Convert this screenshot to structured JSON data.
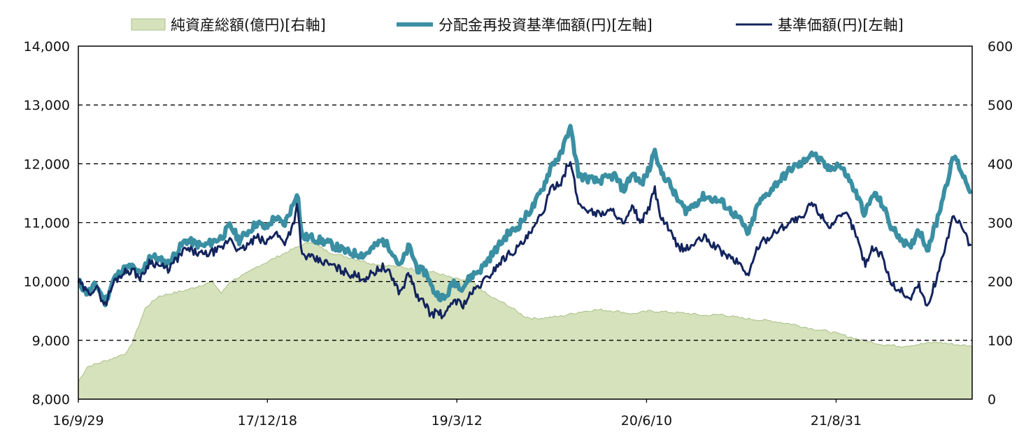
{
  "chart_data": {
    "type": "line",
    "title": "",
    "xlabel": "",
    "ylabel": "",
    "x_ticks": [
      "16/9/29",
      "17/12/18",
      "19/3/12",
      "20/6/10",
      "21/8/31"
    ],
    "left_axis": {
      "min": 8000,
      "max": 14000,
      "ticks": [
        "8,000",
        "9,000",
        "10,000",
        "11,000",
        "12,000",
        "13,000",
        "14,000"
      ]
    },
    "right_axis": {
      "min": 0,
      "max": 600,
      "ticks": [
        "0",
        "100",
        "200",
        "300",
        "400",
        "500",
        "600"
      ]
    },
    "grid": "dashed horizontal at each left-axis tick",
    "legend": [
      {
        "label": "純資産総額(億円)[右軸]",
        "type": "area",
        "color": "#d6e2bc",
        "edge": "#a9bf86"
      },
      {
        "label": "分配金再投資基準価額(円)[左軸]",
        "type": "line",
        "color": "#3a8fa3"
      },
      {
        "label": "基準価額(円)[左軸]",
        "type": "line",
        "color": "#13245e"
      }
    ],
    "series": [
      {
        "name": "純資産総額(億円)[右軸]",
        "axis": "right",
        "t": [
          0,
          0.01,
          0.04,
          0.055,
          0.06,
          0.07,
          0.075,
          0.09,
          0.12,
          0.13,
          0.15,
          0.16,
          0.17,
          0.19,
          0.2,
          0.22,
          0.24,
          0.26,
          0.28,
          0.3,
          0.33,
          0.36,
          0.38,
          0.4,
          0.42,
          0.44,
          0.46,
          0.48,
          0.5,
          0.51,
          0.52,
          0.54,
          0.56,
          0.58,
          0.6,
          0.62,
          0.64,
          0.66,
          0.68,
          0.7,
          0.72,
          0.74,
          0.76,
          0.78,
          0.8,
          0.82,
          0.84,
          0.86,
          0.88,
          0.9,
          0.92,
          0.94,
          0.96,
          0.98,
          1.0
        ],
        "values": [
          30,
          55,
          70,
          80,
          95,
          135,
          155,
          175,
          185,
          190,
          200,
          180,
          200,
          215,
          225,
          240,
          255,
          268,
          250,
          242,
          230,
          225,
          220,
          215,
          205,
          200,
          175,
          160,
          140,
          137,
          138,
          141,
          148,
          152,
          150,
          145,
          150,
          148,
          146,
          142,
          144,
          138,
          135,
          132,
          127,
          120,
          115,
          107,
          99,
          93,
          90,
          93,
          97,
          93,
          90
        ]
      },
      {
        "name": "分配金再投資基準価額(円)[左軸]",
        "axis": "left",
        "t": [
          0,
          0.01,
          0.02,
          0.03,
          0.04,
          0.05,
          0.06,
          0.07,
          0.08,
          0.1,
          0.12,
          0.14,
          0.16,
          0.17,
          0.18,
          0.2,
          0.21,
          0.22,
          0.23,
          0.24,
          0.245,
          0.25,
          0.26,
          0.28,
          0.3,
          0.32,
          0.34,
          0.35,
          0.36,
          0.37,
          0.38,
          0.39,
          0.395,
          0.4,
          0.41,
          0.42,
          0.43,
          0.44,
          0.45,
          0.46,
          0.47,
          0.48,
          0.49,
          0.5,
          0.51,
          0.52,
          0.53,
          0.54,
          0.55,
          0.56,
          0.58,
          0.6,
          0.61,
          0.62,
          0.63,
          0.64,
          0.645,
          0.65,
          0.66,
          0.67,
          0.68,
          0.7,
          0.72,
          0.74,
          0.75,
          0.76,
          0.78,
          0.8,
          0.81,
          0.82,
          0.84,
          0.85,
          0.86,
          0.87,
          0.88,
          0.89,
          0.9,
          0.91,
          0.92,
          0.93,
          0.94,
          0.95,
          0.96,
          0.97,
          0.98,
          0.99,
          1.0
        ],
        "values": [
          10000,
          9800,
          9950,
          9650,
          10050,
          10200,
          10250,
          10100,
          10450,
          10300,
          10700,
          10600,
          10750,
          10950,
          10700,
          11000,
          10900,
          11100,
          10950,
          11300,
          11550,
          10750,
          10750,
          10650,
          10500,
          10450,
          10700,
          10550,
          10250,
          10600,
          10200,
          10150,
          9900,
          9800,
          9700,
          10000,
          9900,
          10100,
          10200,
          10400,
          10600,
          10800,
          10900,
          11100,
          11300,
          11600,
          12000,
          12150,
          12650,
          11800,
          11700,
          11800,
          11550,
          11850,
          11650,
          11950,
          12300,
          11900,
          11700,
          11400,
          11200,
          11450,
          11350,
          11050,
          10800,
          11300,
          11650,
          11950,
          12000,
          12200,
          11900,
          12000,
          11800,
          11500,
          11150,
          11500,
          11300,
          10900,
          10750,
          10550,
          10900,
          10550,
          11000,
          11600,
          12150,
          11800,
          11500
        ]
      },
      {
        "name": "基準価額(円)[左軸]",
        "axis": "left",
        "t": [
          0,
          0.01,
          0.02,
          0.03,
          0.04,
          0.05,
          0.06,
          0.07,
          0.08,
          0.1,
          0.12,
          0.14,
          0.16,
          0.17,
          0.18,
          0.2,
          0.21,
          0.22,
          0.23,
          0.24,
          0.245,
          0.25,
          0.26,
          0.28,
          0.3,
          0.32,
          0.34,
          0.35,
          0.36,
          0.37,
          0.38,
          0.39,
          0.395,
          0.4,
          0.41,
          0.42,
          0.43,
          0.44,
          0.45,
          0.46,
          0.47,
          0.48,
          0.49,
          0.5,
          0.51,
          0.52,
          0.53,
          0.54,
          0.55,
          0.56,
          0.58,
          0.6,
          0.61,
          0.62,
          0.63,
          0.64,
          0.645,
          0.65,
          0.66,
          0.67,
          0.68,
          0.7,
          0.72,
          0.74,
          0.75,
          0.76,
          0.78,
          0.8,
          0.81,
          0.82,
          0.84,
          0.85,
          0.86,
          0.87,
          0.88,
          0.89,
          0.9,
          0.91,
          0.92,
          0.93,
          0.94,
          0.95,
          0.96,
          0.97,
          0.98,
          0.99,
          1.0
        ],
        "values": [
          10000,
          9800,
          9900,
          9600,
          10000,
          10150,
          10200,
          10050,
          10350,
          10200,
          10550,
          10450,
          10550,
          10750,
          10500,
          10750,
          10650,
          10850,
          10650,
          10950,
          11300,
          10450,
          10400,
          10300,
          10150,
          10050,
          10250,
          10100,
          9800,
          10150,
          9700,
          9600,
          9400,
          9500,
          9400,
          9700,
          9600,
          9800,
          9950,
          10100,
          10300,
          10450,
          10550,
          10700,
          10900,
          11200,
          11600,
          11700,
          12050,
          11300,
          11150,
          11200,
          10950,
          11250,
          11000,
          11300,
          11600,
          11150,
          10900,
          10600,
          10550,
          10750,
          10500,
          10300,
          10100,
          10600,
          10850,
          11050,
          11050,
          11350,
          10950,
          11050,
          11150,
          10800,
          10300,
          10600,
          10400,
          9950,
          9850,
          9700,
          9950,
          9550,
          10050,
          10600,
          11150,
          10850,
          10550
        ]
      }
    ]
  }
}
